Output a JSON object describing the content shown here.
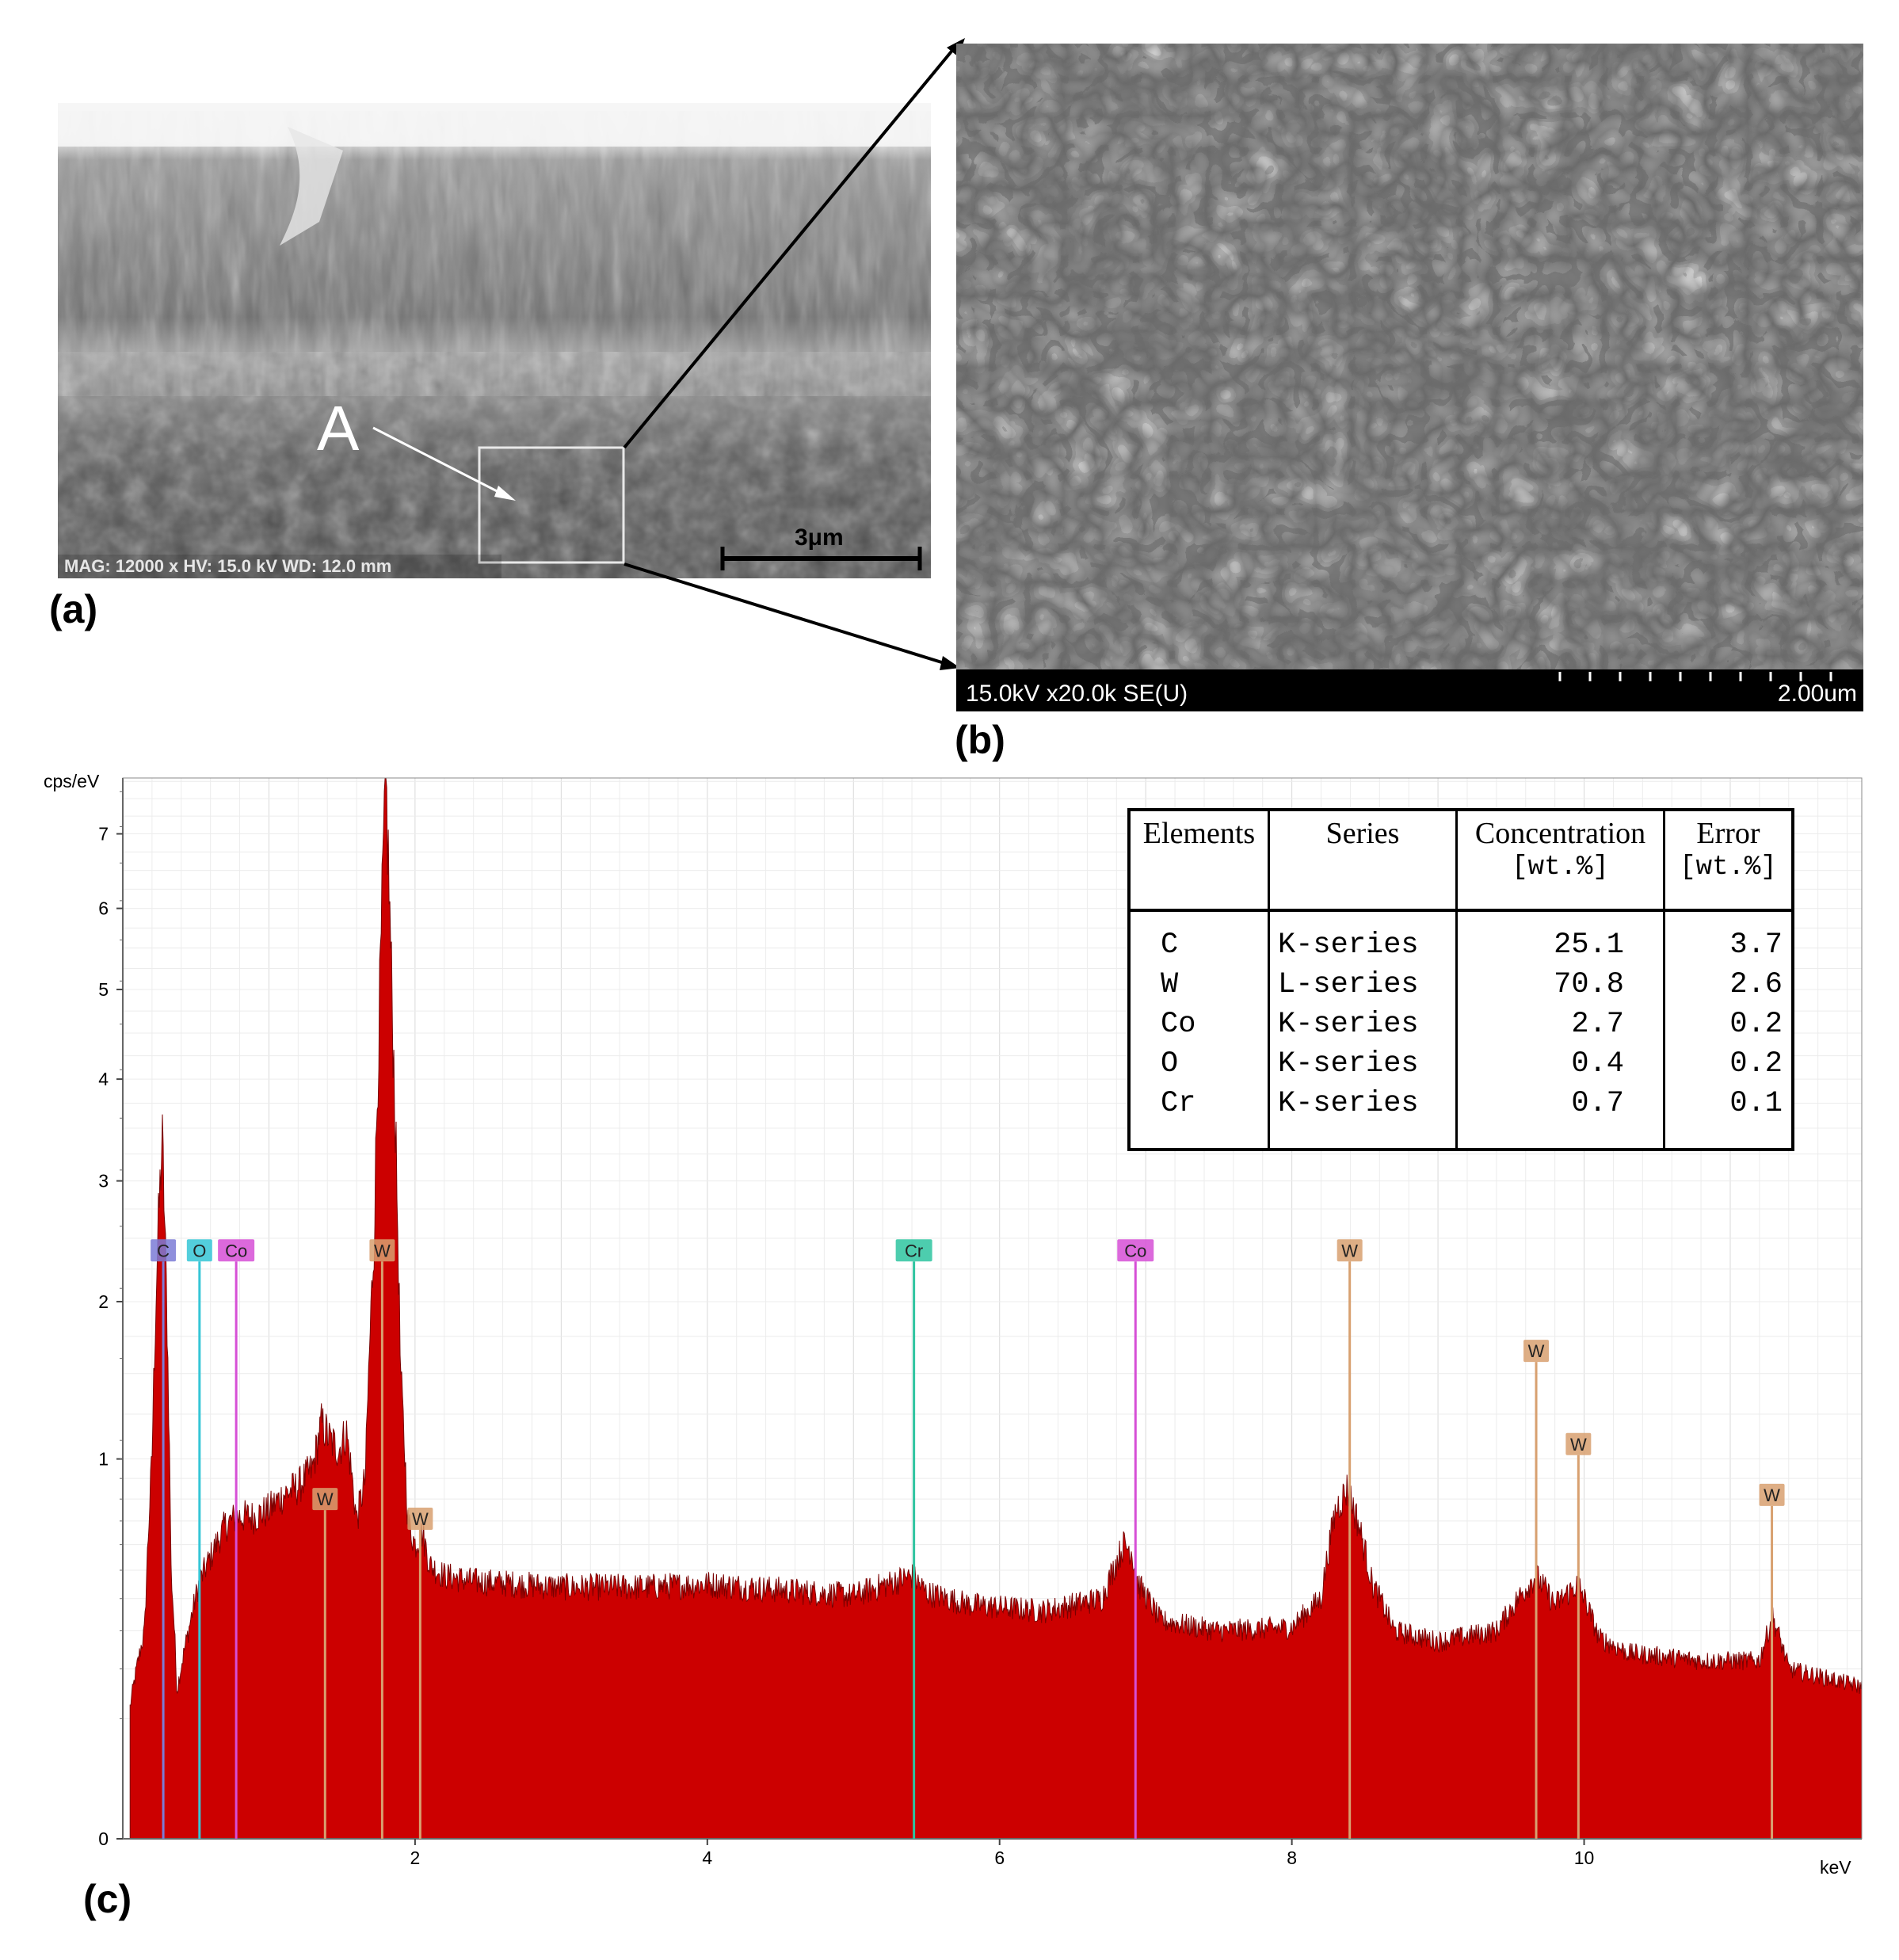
{
  "panels": {
    "a": {
      "label": "(a)",
      "marker": "A",
      "scale_bar": "3μm",
      "info_bar": "MAG: 12000 x  HV: 15.0 kV   WD: 12.0 mm"
    },
    "b": {
      "label": "(b)",
      "info_left": "15.0kV x20.0k SE(U)",
      "info_right": "2.00um"
    },
    "c": {
      "label": "(c)"
    }
  },
  "eds_table": {
    "headers": [
      "Elements",
      "Series",
      "Concentration",
      "Error"
    ],
    "units": [
      "[wt.%]",
      "[wt.%]"
    ],
    "rows": [
      {
        "element": "C",
        "series": "K-series",
        "concentration": "25.1",
        "error": "3.7"
      },
      {
        "element": "W",
        "series": "L-series",
        "concentration": "70.8",
        "error": "2.6"
      },
      {
        "element": "Co",
        "series": "K-series",
        "concentration": "2.7",
        "error": "0.2"
      },
      {
        "element": "O",
        "series": "K-series",
        "concentration": "0.4",
        "error": "0.2"
      },
      {
        "element": "Cr",
        "series": "K-series",
        "concentration": "0.7",
        "error": "0.1"
      }
    ]
  },
  "colors": {
    "spectrum_fill": "#cc0000",
    "spectrum_edge": "#7a0000",
    "C": "#7b7bd6",
    "O": "#35c6d6",
    "Co": "#d64fd6",
    "W": "#d8a070",
    "Cr": "#2ec4a0"
  },
  "chart_data": {
    "type": "area",
    "xlabel": "keV",
    "ylabel": "cps/eV",
    "xlim": [
      0,
      11.9
    ],
    "ylim": [
      0,
      7.8
    ],
    "y_scale": "sqrt",
    "x_ticks": [
      2,
      4,
      6,
      8,
      10
    ],
    "y_ticks": [
      0,
      1,
      2,
      3,
      4,
      5,
      6,
      7
    ],
    "grid": true,
    "series": [
      {
        "x": [
          0.05,
          0.15,
          0.2,
          0.24,
          0.27,
          0.3,
          0.33,
          0.37,
          0.45,
          0.52,
          0.6,
          0.7,
          0.78,
          0.9,
          1.0,
          1.1,
          1.2,
          1.3,
          1.36,
          1.42,
          1.48,
          1.53,
          1.6,
          1.66,
          1.72,
          1.76,
          1.8,
          1.84,
          1.9,
          1.95,
          2.0,
          2.05,
          2.1,
          2.2,
          2.4,
          3.0,
          3.6,
          4.0,
          4.5,
          5.0,
          5.4,
          5.5,
          5.8,
          6.3,
          6.7,
          6.85,
          6.9,
          6.95,
          7.1,
          7.5,
          8.0,
          8.2,
          8.3,
          8.38,
          8.45,
          8.55,
          8.7,
          9.0,
          9.4,
          9.55,
          9.67,
          9.8,
          9.96,
          10.1,
          10.3,
          10.8,
          11.2,
          11.29,
          11.4,
          11.9
        ],
        "y": [
          0.12,
          0.3,
          1.0,
          2.5,
          3.4,
          2.0,
          0.5,
          0.15,
          0.3,
          0.45,
          0.55,
          0.68,
          0.72,
          0.72,
          0.75,
          0.82,
          0.86,
          0.95,
          1.2,
          1.1,
          1.05,
          1.15,
          0.7,
          0.9,
          2.5,
          5.0,
          7.8,
          5.0,
          1.5,
          0.7,
          0.6,
          0.65,
          0.52,
          0.48,
          0.46,
          0.44,
          0.44,
          0.45,
          0.43,
          0.41,
          0.48,
          0.42,
          0.38,
          0.36,
          0.4,
          0.6,
          0.58,
          0.45,
          0.33,
          0.3,
          0.31,
          0.4,
          0.75,
          0.85,
          0.7,
          0.45,
          0.3,
          0.27,
          0.3,
          0.4,
          0.48,
          0.38,
          0.45,
          0.28,
          0.24,
          0.22,
          0.22,
          0.34,
          0.2,
          0.16
        ]
      }
    ],
    "annotations": [
      {
        "label": "C",
        "x": 0.277,
        "y": 2.4
      },
      {
        "label": "O",
        "x": 0.525,
        "y": 2.4
      },
      {
        "label": "Co",
        "x": 0.776,
        "y": 2.4
      },
      {
        "label": "W",
        "x": 1.775,
        "y": 2.4
      },
      {
        "label": "W",
        "x": 1.384,
        "y": 0.8
      },
      {
        "label": "W",
        "x": 2.035,
        "y": 0.71
      },
      {
        "label": "Cr",
        "x": 5.414,
        "y": 2.4
      },
      {
        "label": "Co",
        "x": 6.93,
        "y": 2.4
      },
      {
        "label": "W",
        "x": 8.396,
        "y": 2.4
      },
      {
        "label": "W",
        "x": 9.672,
        "y": 1.65
      },
      {
        "label": "W",
        "x": 9.961,
        "y": 1.08
      },
      {
        "label": "W",
        "x": 11.285,
        "y": 0.82
      }
    ]
  }
}
